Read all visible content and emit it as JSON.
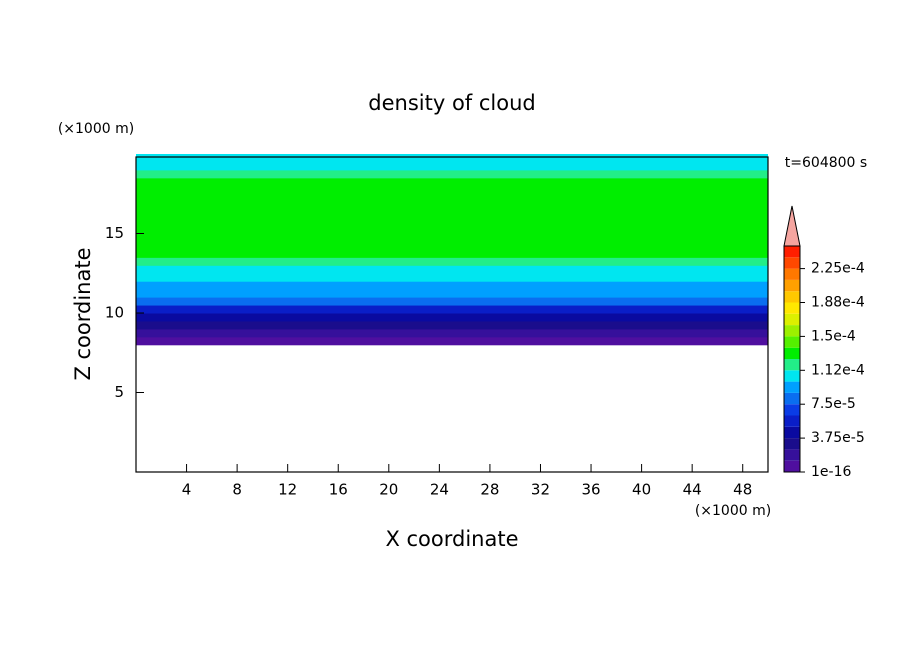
{
  "chart_data": {
    "type": "contour",
    "title": "density of cloud",
    "x_label": "X coordinate",
    "y_label": "Z coordinate",
    "x_unit": "(×1000 m)",
    "y_unit": "(×1000 m)",
    "time_label": "t=604800 s",
    "xlim": [
      0,
      50
    ],
    "ylim": [
      0,
      20
    ],
    "xticks": [
      4,
      8,
      12,
      16,
      20,
      24,
      28,
      32,
      36,
      40,
      44,
      48
    ],
    "yticks": [
      5,
      10,
      15
    ],
    "profile": {
      "y": [
        8.25,
        8.75,
        9.25,
        9.75,
        10.25,
        10.75,
        11.25,
        11.75,
        12.25,
        12.75,
        13.25,
        13.75,
        14.25,
        14.75,
        15.25,
        15.75,
        16.25,
        16.75,
        17.25,
        17.75,
        18.25,
        18.75,
        19.25,
        19.75
      ],
      "values": [
        5e-06,
        1.5e-05,
        2.8e-05,
        4.5e-05,
        6e-05,
        8e-05,
        9e-05,
        9.6e-05,
        0.000102,
        0.000108,
        0.000114,
        0.000126,
        0.00013,
        0.00013,
        0.00013,
        0.00013,
        0.00013,
        0.00013,
        0.00013,
        0.00013,
        0.000126,
        0.000116,
        0.000112,
        0.00011
      ]
    },
    "colorbar": {
      "levels": [
        1e-16,
        1.25e-05,
        2.5e-05,
        3.75e-05,
        5e-05,
        6.25e-05,
        7.5e-05,
        8.75e-05,
        0.0001,
        0.0001125,
        0.000125,
        0.0001375,
        0.00015,
        0.0001625,
        0.000175,
        0.0001875,
        0.0002,
        0.0002125,
        0.000225,
        0.0002375,
        0.00025
      ],
      "colors": [
        "#4f0f9f",
        "#36109b",
        "#1a0d8c",
        "#0a0aa0",
        "#0a1ec8",
        "#0a3ce6",
        "#0a6ef0",
        "#00a0ff",
        "#00e6f0",
        "#22ee88",
        "#00ee00",
        "#55f000",
        "#9cf000",
        "#dcf000",
        "#ffe800",
        "#ffc800",
        "#ffa000",
        "#ff7800",
        "#ff4800",
        "#ff1e00"
      ],
      "extend_color": "#f5a5a0",
      "ticks": [
        1e-16,
        {
          "value": 3.75e-05,
          "label": "3.75e-5"
        },
        {
          "value": 7.5e-05,
          "label": "7.5e-5"
        },
        {
          "value": 0.0001125,
          "label": "1.12e-4"
        },
        {
          "value": 0.00015,
          "label": "1.5e-4"
        },
        {
          "value": 0.0001875,
          "label": "1.88e-4"
        },
        {
          "value": 0.000225,
          "label": "2.25e-4"
        }
      ]
    }
  }
}
